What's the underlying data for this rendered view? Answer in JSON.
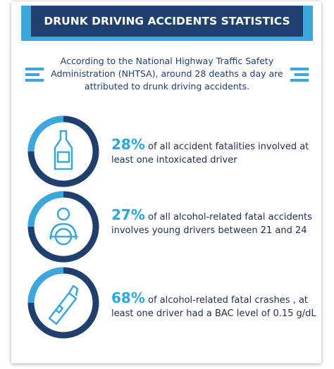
{
  "header": {
    "title": "DRUNK DRIVING ACCIDENTS STATISTICS"
  },
  "intro": "According to the National Highway Traffic Safety Administration (NHTSA), around 28 deaths a day are attributed to drunk driving accidents.",
  "stats": [
    {
      "percent": "28%",
      "text": "of all accident fatalities involved at least one intoxicated driver"
    },
    {
      "percent": "27%",
      "text": "of all alcohol-related fatal accidents involves young drivers between 21 and 24"
    },
    {
      "percent": "68%",
      "text": "of alcohol-related fatal crashes , at least one driver had a BAC level of 0.15 g/dL"
    }
  ]
}
